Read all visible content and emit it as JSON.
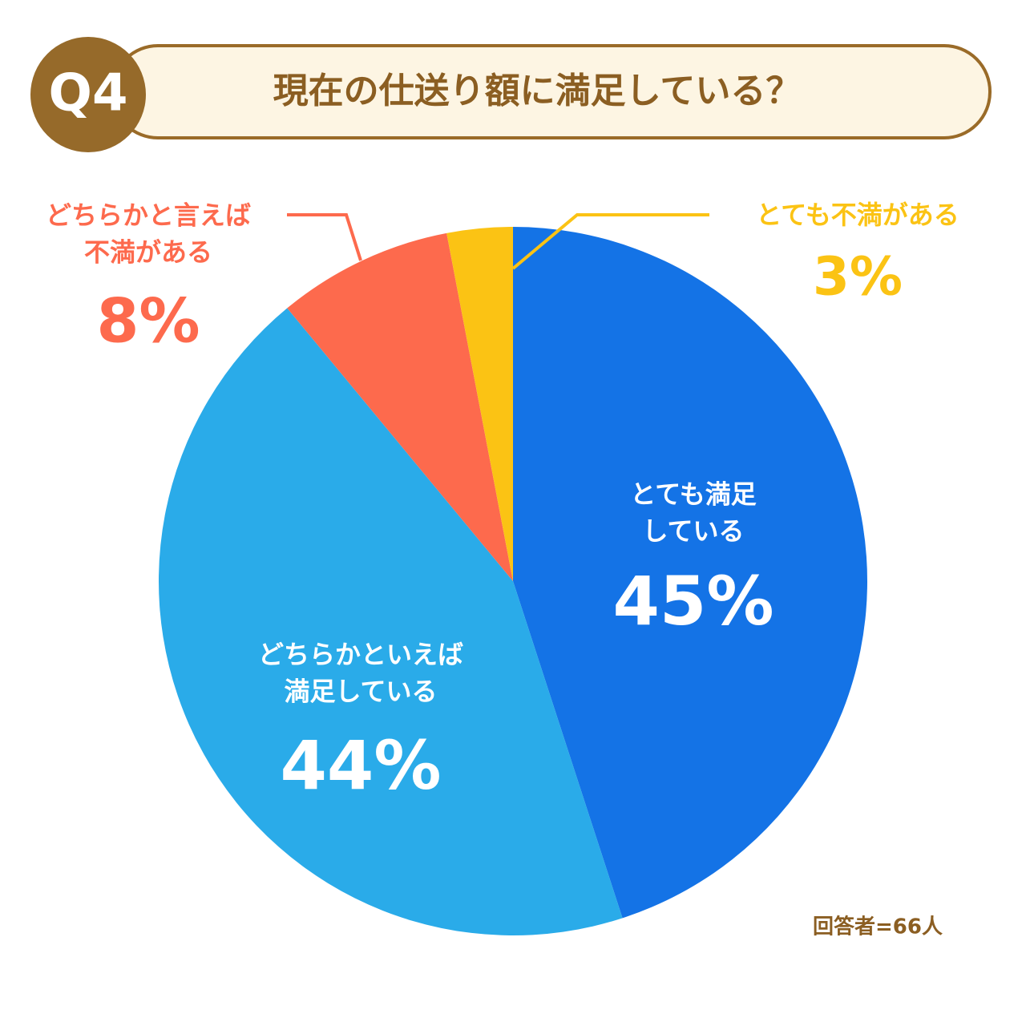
{
  "badge": "Q4",
  "note": "回答者=66人",
  "chart_data": {
    "type": "pie",
    "title": "現在の仕送り額に満足している？",
    "categories": [
      "とても満足している",
      "どちらかといえば満足している",
      "どちらかと言えば不満がある",
      "とても不満がある"
    ],
    "values": [
      45,
      44,
      8,
      3
    ],
    "value_labels": [
      "45%",
      "44%",
      "8%",
      "3%"
    ],
    "colors": [
      "#1473e6",
      "#2aabe9",
      "#fd6a4d",
      "#fbc314"
    ]
  }
}
